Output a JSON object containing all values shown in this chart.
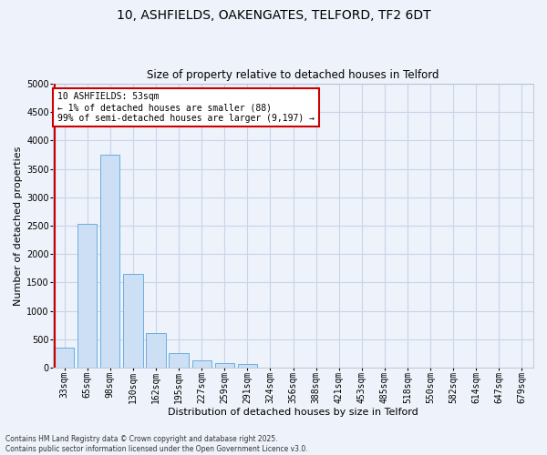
{
  "title_line1": "10, ASHFIELDS, OAKENGATES, TELFORD, TF2 6DT",
  "title_line2": "Size of property relative to detached houses in Telford",
  "xlabel": "Distribution of detached houses by size in Telford",
  "ylabel": "Number of detached properties",
  "categories": [
    "33sqm",
    "65sqm",
    "98sqm",
    "130sqm",
    "162sqm",
    "195sqm",
    "227sqm",
    "259sqm",
    "291sqm",
    "324sqm",
    "356sqm",
    "388sqm",
    "421sqm",
    "453sqm",
    "485sqm",
    "518sqm",
    "550sqm",
    "582sqm",
    "614sqm",
    "647sqm",
    "679sqm"
  ],
  "values": [
    350,
    2530,
    3750,
    1650,
    600,
    250,
    130,
    80,
    55,
    0,
    0,
    0,
    0,
    0,
    0,
    0,
    0,
    0,
    0,
    0,
    0
  ],
  "bar_color": "#ccdff5",
  "bar_edge_color": "#6aaee0",
  "grid_color": "#c8d4e8",
  "ylim": [
    0,
    5000
  ],
  "yticks": [
    0,
    500,
    1000,
    1500,
    2000,
    2500,
    3000,
    3500,
    4000,
    4500,
    5000
  ],
  "vline_color": "#cc0000",
  "annotation_text": "10 ASHFIELDS: 53sqm\n← 1% of detached houses are smaller (88)\n99% of semi-detached houses are larger (9,197) →",
  "annotation_box_color": "#ffffff",
  "annotation_box_edge": "#cc0000",
  "footer_line1": "Contains HM Land Registry data © Crown copyright and database right 2025.",
  "footer_line2": "Contains public sector information licensed under the Open Government Licence v3.0.",
  "background_color": "#eef2fa",
  "plot_bg_color": "#eef2fa",
  "title1_fontsize": 10,
  "title2_fontsize": 8.5,
  "xlabel_fontsize": 8,
  "ylabel_fontsize": 8,
  "tick_fontsize": 7,
  "annot_fontsize": 7,
  "footer_fontsize": 5.5
}
